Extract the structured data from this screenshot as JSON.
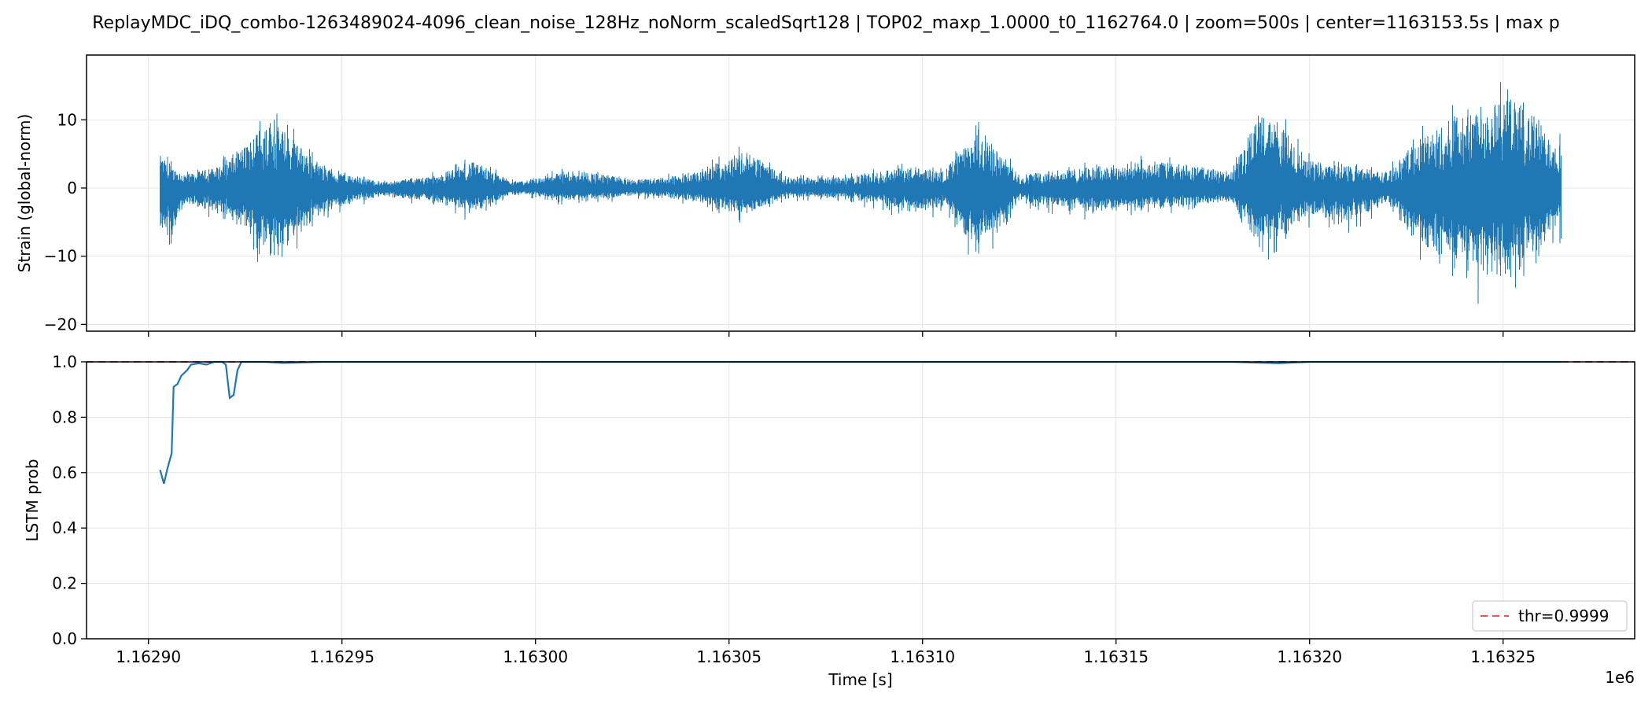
{
  "title": "ReplayMDC_iDQ_combo-1263489024-4096_clean_noise_128Hz_noNorm_scaledSqrt128 | TOP02_maxp_1.0000_t0_1162764.0 | zoom=500s | center=1163153.5s | max p",
  "colors": {
    "series": "#1f77b4",
    "threshold": "#ff4d4d",
    "grid": "#e5e5e5",
    "axis": "#000000"
  },
  "chart_data": [
    {
      "type": "line",
      "name": "strain-panel",
      "ylabel": "Strain (global-norm)",
      "xlim": [
        1162884,
        1163284
      ],
      "ylim": [
        -21,
        19.5
      ],
      "yticks": [
        10,
        0,
        -10,
        -20
      ],
      "ytick_labels": [
        "10",
        "0",
        "−10",
        "−20"
      ],
      "grid": true,
      "x_start": 1162903,
      "x_end": 1163265,
      "envelope": [
        {
          "x": 1162903,
          "ymax": 6,
          "ymin": -8
        },
        {
          "x": 1162906,
          "ymax": 4,
          "ymin": -10
        },
        {
          "x": 1162910,
          "ymax": 2.5,
          "ymin": -3
        },
        {
          "x": 1162918,
          "ymax": 4,
          "ymin": -5
        },
        {
          "x": 1162925,
          "ymax": 8,
          "ymin": -8
        },
        {
          "x": 1162931,
          "ymax": 13,
          "ymin": -14.5
        },
        {
          "x": 1162936,
          "ymax": 10,
          "ymin": -11
        },
        {
          "x": 1162945,
          "ymax": 4,
          "ymin": -5
        },
        {
          "x": 1162960,
          "ymax": 1,
          "ymin": -1.5
        },
        {
          "x": 1162975,
          "ymax": 2.5,
          "ymin": -3
        },
        {
          "x": 1162983,
          "ymax": 5,
          "ymin": -5
        },
        {
          "x": 1162995,
          "ymax": 1,
          "ymin": -1
        },
        {
          "x": 1163010,
          "ymax": 3.5,
          "ymin": -3
        },
        {
          "x": 1163025,
          "ymax": 1.5,
          "ymin": -1.5
        },
        {
          "x": 1163040,
          "ymax": 2.5,
          "ymin": -2.5
        },
        {
          "x": 1163054,
          "ymax": 7,
          "ymin": -6
        },
        {
          "x": 1163065,
          "ymax": 2,
          "ymin": -2
        },
        {
          "x": 1163080,
          "ymax": 2,
          "ymin": -2
        },
        {
          "x": 1163098,
          "ymax": 4,
          "ymin": -5
        },
        {
          "x": 1163105,
          "ymax": 3,
          "ymin": -4
        },
        {
          "x": 1163115,
          "ymax": 10.5,
          "ymin": -13
        },
        {
          "x": 1163125,
          "ymax": 2.5,
          "ymin": -3
        },
        {
          "x": 1163145,
          "ymax": 4,
          "ymin": -5
        },
        {
          "x": 1163160,
          "ymax": 5,
          "ymin": -4
        },
        {
          "x": 1163180,
          "ymax": 3,
          "ymin": -3
        },
        {
          "x": 1163187,
          "ymax": 14,
          "ymin": -12
        },
        {
          "x": 1163192,
          "ymax": 12,
          "ymin": -10
        },
        {
          "x": 1163200,
          "ymax": 5,
          "ymin": -6
        },
        {
          "x": 1163210,
          "ymax": 4,
          "ymin": -7
        },
        {
          "x": 1163220,
          "ymax": 3,
          "ymin": -3
        },
        {
          "x": 1163230,
          "ymax": 10,
          "ymin": -13
        },
        {
          "x": 1163240,
          "ymax": 14,
          "ymin": -16
        },
        {
          "x": 1163245,
          "ymax": 17,
          "ymin": -19
        },
        {
          "x": 1163255,
          "ymax": 16,
          "ymin": -16
        },
        {
          "x": 1163262,
          "ymax": 10,
          "ymin": -10
        },
        {
          "x": 1163265,
          "ymax": 8,
          "ymin": -8
        }
      ]
    },
    {
      "type": "line",
      "name": "lstm-panel",
      "ylabel": "LSTM prob",
      "xlabel": "Time [s]",
      "xlim": [
        1162884,
        1163284
      ],
      "ylim": [
        0.0,
        1.0
      ],
      "yticks": [
        1.0,
        0.8,
        0.6,
        0.4,
        0.2,
        0.0
      ],
      "ytick_labels": [
        "1.0",
        "0.8",
        "0.6",
        "0.4",
        "0.2",
        "0.0"
      ],
      "xticks": [
        1162900,
        1162950,
        1163000,
        1163050,
        1163100,
        1163150,
        1163200,
        1163250
      ],
      "xtick_labels": [
        "1.16290",
        "1.16295",
        "1.16300",
        "1.16305",
        "1.16310",
        "1.16315",
        "1.16320",
        "1.16325"
      ],
      "x_offset_label": "1e6",
      "grid": true,
      "threshold": 0.9999,
      "legend": {
        "label": "thr=0.9999",
        "loc": "lower right"
      },
      "series": [
        {
          "x": [
            1162903,
            1162904,
            1162905,
            1162906,
            1162906.5,
            1162907.5,
            1162908.5,
            1162910,
            1162911,
            1162913,
            1162915,
            1162917,
            1162919,
            1162920,
            1162921,
            1162922,
            1162923,
            1162924,
            1162926,
            1162930,
            1162935,
            1162945,
            1162950,
            1163000,
            1163100,
            1163180,
            1163192,
            1163200,
            1163265
          ],
          "y": [
            0.61,
            0.56,
            0.62,
            0.67,
            0.91,
            0.92,
            0.95,
            0.97,
            0.99,
            0.995,
            0.99,
            1.0,
            1.0,
            0.99,
            0.87,
            0.88,
            0.97,
            1.0,
            1.0,
            1.0,
            0.996,
            1.0,
            1.0,
            1.0,
            1.0,
            1.0,
            0.995,
            1.0,
            1.0
          ]
        }
      ]
    }
  ]
}
